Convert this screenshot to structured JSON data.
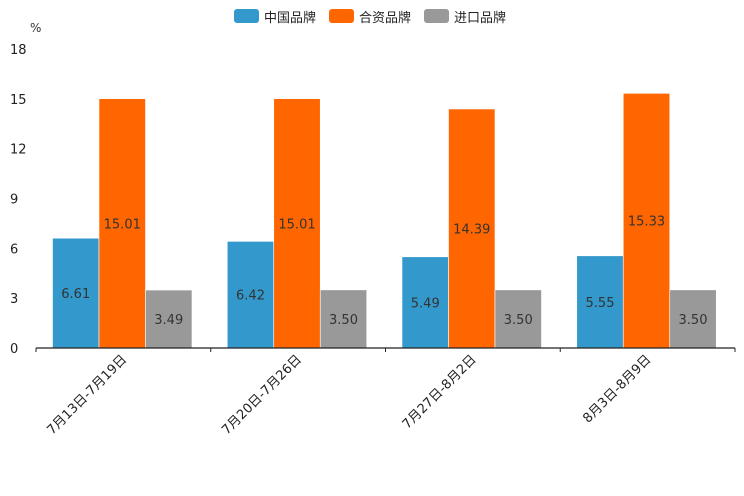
{
  "chart_data": {
    "type": "bar",
    "title": "",
    "unit_label": "%",
    "xlabel": "",
    "ylabel": "%",
    "ylim": [
      0,
      18
    ],
    "yticks": [
      0,
      3,
      6,
      9,
      12,
      15,
      18
    ],
    "categories": [
      "7月13日-7月19日",
      "7月20日-7月26日",
      "7月27日-8月2日",
      "8月3日-8月9日"
    ],
    "series": [
      {
        "name": "中国品牌",
        "color": "#3399cc",
        "values": [
          6.61,
          6.42,
          5.49,
          5.55
        ],
        "labels": [
          "6.61",
          "6.42",
          "5.49",
          "5.55"
        ]
      },
      {
        "name": "合资品牌",
        "color": "#ff6600",
        "values": [
          15.01,
          15.01,
          14.39,
          15.33
        ],
        "labels": [
          "15.01",
          "15.01",
          "14.39",
          "15.33"
        ]
      },
      {
        "name": "进口品牌",
        "color": "#999999",
        "values": [
          3.49,
          3.5,
          3.5,
          3.5
        ],
        "labels": [
          "3.49",
          "3.50",
          "3.50",
          "3.50"
        ]
      }
    ],
    "legend_position": "top-center",
    "grid": false
  }
}
